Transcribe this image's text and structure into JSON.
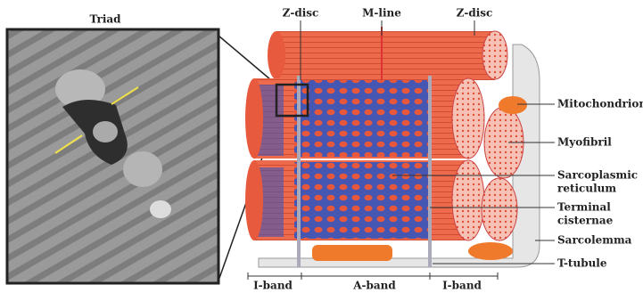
{
  "inset": {
    "title": "Triad"
  },
  "top_labels": [
    "Z-disc",
    "M-line",
    "Z-disc"
  ],
  "side_labels": [
    [
      "Mitochondrion"
    ],
    [
      "Myofibril"
    ],
    [
      "Sarcoplasmic",
      "reticulum"
    ],
    [
      "Terminal",
      "cisternae"
    ],
    [
      "Sarcolemma"
    ],
    [
      "T-tubule"
    ]
  ],
  "bands": [
    "I-band",
    "A-band",
    "I-band"
  ]
}
